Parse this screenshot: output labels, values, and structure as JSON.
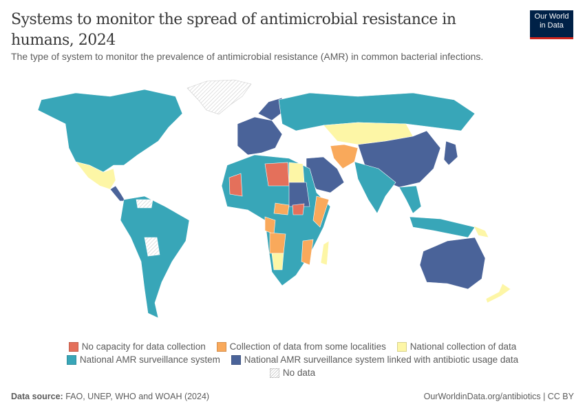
{
  "header": {
    "title": "Systems to monitor the spread of antimicrobial resistance in humans, 2024",
    "subtitle": "The type of system to monitor the prevalence of antimicrobial resistance (AMR) in common bacterial infections."
  },
  "logo": {
    "line1": "Our World",
    "line2": "in Data"
  },
  "legend": [
    {
      "label": "No capacity for data collection",
      "color": "#e4705b"
    },
    {
      "label": "Collection of data from some localities",
      "color": "#f9a95b"
    },
    {
      "label": "National collection of data",
      "color": "#fdf6a6"
    },
    {
      "label": "National AMR surveillance system",
      "color": "#38a6b8"
    },
    {
      "label": "National AMR surveillance system linked with antibiotic usage data",
      "color": "#4a6399"
    },
    {
      "label": "No data",
      "color": "hatched"
    }
  ],
  "footer": {
    "source_label": "Data source:",
    "source": "FAO, UNEP, WHO and WOAH (2024)",
    "url": "OurWorldinData.org/antibiotics | CC BY"
  }
}
